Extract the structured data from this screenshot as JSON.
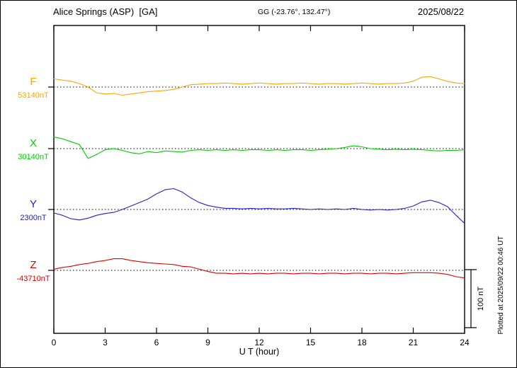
{
  "header": {
    "station": "Alice Springs (ASP)  [GA]",
    "coords": "GG (-23.76°, 132.47°)",
    "date": "2025/08/22"
  },
  "chart_data": {
    "type": "line",
    "title": "Alice Springs (ASP) [GA] magnetogram 2025/08/22",
    "xlabel": "U T (hour)",
    "xlim": [
      0,
      24
    ],
    "x_ticks": [
      0,
      3,
      6,
      9,
      12,
      15,
      18,
      21,
      24
    ],
    "x_step_hours": 0.5,
    "units": "nT",
    "grid": "dotted horizontal baseline per component",
    "legend_position": "left margin, colored component letters with baseline values",
    "scale_bar": {
      "label": "100 nT",
      "nT": 100
    },
    "plotted_at": "Plotted at 2025/09/22 00:46 UT",
    "series": [
      {
        "name": "F",
        "color": "#FFA500",
        "baseline_label": "53140nT",
        "baseline_nT": 53140,
        "offsets_nT": [
          14,
          12,
          10,
          6,
          0,
          -10,
          -12,
          -11,
          -14,
          -12,
          -10,
          -8,
          -7,
          -6,
          -4,
          0,
          4,
          5,
          6,
          6,
          7,
          6,
          5,
          6,
          7,
          6,
          5,
          6,
          6,
          7,
          6,
          5,
          6,
          6,
          5,
          6,
          7,
          6,
          5,
          6,
          6,
          7,
          10,
          17,
          18,
          14,
          10,
          7,
          6
        ]
      },
      {
        "name": "X",
        "color": "#00CC00",
        "baseline_label": "30140nT",
        "baseline_nT": 30140,
        "offsets_nT": [
          20,
          17,
          12,
          7,
          -17,
          -10,
          -2,
          0,
          -3,
          -7,
          -9,
          -5,
          -7,
          -4,
          -5,
          -6,
          -3,
          -2,
          -3,
          -2,
          -3,
          -2,
          -3,
          -2,
          -2,
          -3,
          -2,
          -3,
          -2,
          -2,
          -3,
          -2,
          -1,
          0,
          2,
          5,
          3,
          0,
          -1,
          -2,
          -1,
          -2,
          -1,
          -2,
          -3,
          -4,
          -3,
          -3,
          -2
        ]
      },
      {
        "name": "Y",
        "color": "#2222CC",
        "baseline_label": "2300nT",
        "baseline_nT": 2300,
        "offsets_nT": [
          -6,
          -10,
          -16,
          -18,
          -15,
          -10,
          -7,
          -5,
          0,
          6,
          12,
          18,
          27,
          34,
          36,
          30,
          20,
          12,
          7,
          4,
          2,
          2,
          1,
          2,
          1,
          2,
          1,
          1,
          2,
          1,
          0,
          1,
          0,
          1,
          0,
          2,
          0,
          -1,
          0,
          -1,
          0,
          2,
          6,
          13,
          16,
          12,
          5,
          -10,
          -24
        ]
      },
      {
        "name": "Z",
        "color": "#DD0000",
        "baseline_label": "-43710nT",
        "baseline_nT": -43710,
        "offsets_nT": [
          2,
          5,
          7,
          10,
          12,
          15,
          17,
          20,
          20,
          17,
          15,
          13,
          12,
          11,
          10,
          7,
          6,
          2,
          -2,
          -5,
          -5,
          -6,
          -5,
          -6,
          -5,
          -6,
          -5,
          -5,
          -6,
          -5,
          -5,
          -6,
          -5,
          -5,
          -6,
          -5,
          -5,
          -6,
          -5,
          -5,
          -6,
          -5,
          -4,
          -4,
          -4,
          -5,
          -7,
          -11,
          -13
        ]
      }
    ]
  }
}
